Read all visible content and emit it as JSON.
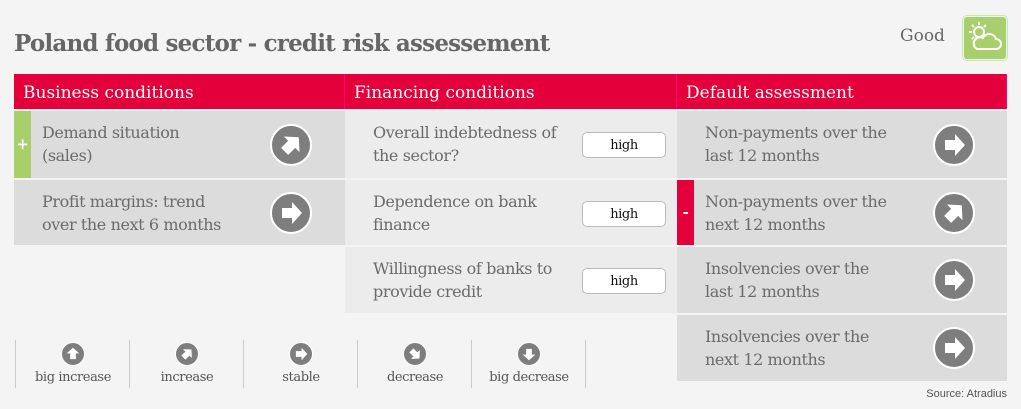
{
  "title": "Poland food sector - credit risk assessement",
  "rating": {
    "label": "Good",
    "icon": "sun-cloud-icon",
    "color": "#a8cf6c"
  },
  "colors": {
    "header": "#e4003a",
    "positive": "#a8cf6c",
    "negative": "#e4003a"
  },
  "columns": [
    {
      "header": "Business conditions",
      "rows": [
        {
          "label": "Demand situation (sales)",
          "trend": "increase",
          "mark": "+"
        },
        {
          "label": "Profit margins: trend over the next 6 months",
          "trend": "stable"
        }
      ]
    },
    {
      "header": "Financing conditions",
      "rows": [
        {
          "label": "Overall indebtedness of the sector?",
          "value": "high"
        },
        {
          "label": "Dependence on bank finance",
          "value": "high"
        },
        {
          "label": "Willingness of banks to provide credit",
          "value": "high"
        }
      ]
    },
    {
      "header": "Default assessment",
      "rows": [
        {
          "label": "Non-payments over the last 12 months",
          "trend": "stable"
        },
        {
          "label": "Non-payments over the next 12 months",
          "trend": "increase",
          "mark": "-"
        },
        {
          "label": "Insolvencies over the last 12 months",
          "trend": "stable"
        },
        {
          "label": "Insolvencies over the next 12 months",
          "trend": "stable"
        }
      ]
    }
  ],
  "legend": [
    {
      "label": "big increase",
      "trend": "big increase"
    },
    {
      "label": "increase",
      "trend": "increase"
    },
    {
      "label": "stable",
      "trend": "stable"
    },
    {
      "label": "decrease",
      "trend": "decrease"
    },
    {
      "label": "big decrease",
      "trend": "big decrease"
    }
  ],
  "source": "Source: Atradius"
}
